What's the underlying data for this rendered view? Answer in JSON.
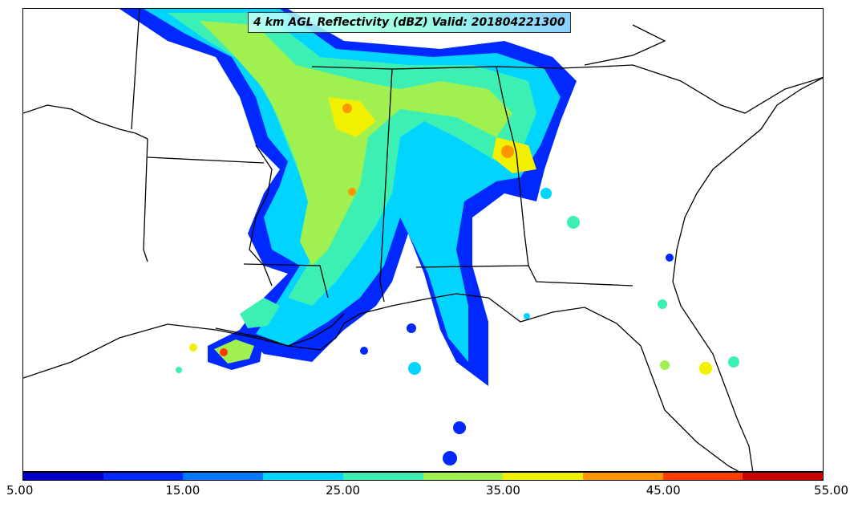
{
  "title": "4 km AGL Reflectivity (dBZ) Valid: 201804221300",
  "colorbar": {
    "colors": [
      "#0000c8",
      "#0028ff",
      "#0078ff",
      "#00d4ff",
      "#3cf0b4",
      "#a0f050",
      "#f0f000",
      "#ff9600",
      "#ff3c00",
      "#c80000"
    ],
    "labels": [
      "5.00",
      "15.00",
      "25.00",
      "35.00",
      "45.00",
      "55.00"
    ],
    "range": [
      5,
      55
    ]
  }
}
